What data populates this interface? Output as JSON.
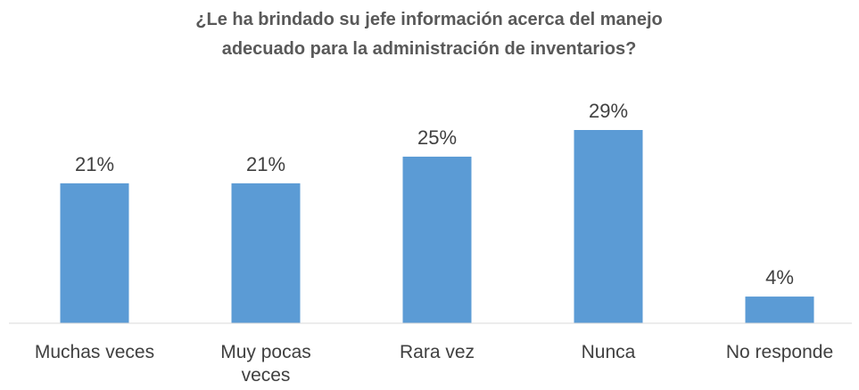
{
  "chart_data": {
    "type": "bar",
    "title": "¿Le ha brindado su jefe información acerca del manejo adecuado para la administración de inventarios?",
    "categories": [
      "Muchas veces",
      "Muy pocas veces",
      "Rara vez",
      "Nunca",
      "No responde"
    ],
    "values": [
      21,
      21,
      25,
      29,
      4
    ],
    "value_labels": [
      "21%",
      "21%",
      "25%",
      "29%",
      "4%"
    ],
    "color": "#5b9bd5"
  }
}
